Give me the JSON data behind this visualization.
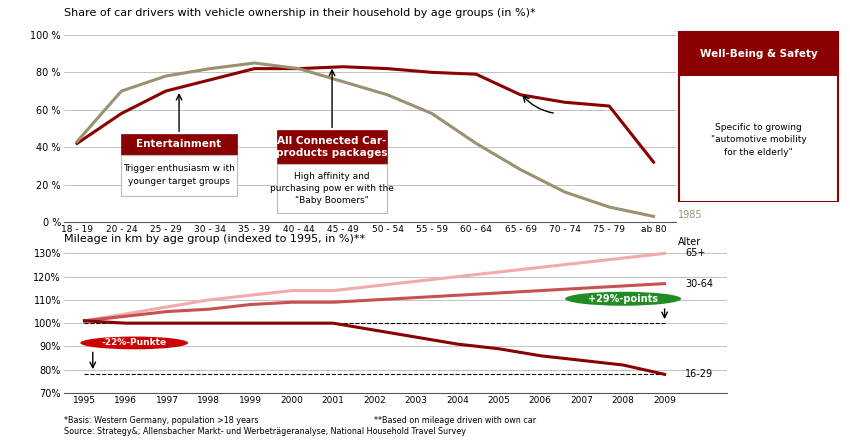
{
  "top_title": "Share of car drivers with vehicle ownership in their household by age groups (in %)*",
  "bottom_title": "Mileage in km by age group (indexed to 1995, in %)**",
  "age_labels": [
    "18 - 19",
    "20 - 24",
    "25 - 29",
    "30 - 34",
    "35 - 39",
    "40 - 44",
    "45 - 49",
    "50 - 54",
    "55 - 59",
    "60 - 64",
    "65 - 69",
    "70 - 74",
    "75 - 79",
    "ab 80"
  ],
  "line_2012": [
    42,
    58,
    70,
    76,
    82,
    82,
    83,
    82,
    80,
    79,
    68,
    64,
    62,
    32
  ],
  "line_1985": [
    43,
    70,
    78,
    82,
    85,
    82,
    75,
    68,
    58,
    42,
    28,
    16,
    8,
    3
  ],
  "top_color_2012": "#8B0000",
  "top_color_1985": "#9B9070",
  "years": [
    1995,
    1996,
    1997,
    1998,
    1999,
    2000,
    2001,
    2002,
    2003,
    2004,
    2005,
    2006,
    2007,
    2008,
    2009
  ],
  "mileage_65plus": [
    101,
    104,
    107,
    110,
    112,
    114,
    114,
    116,
    118,
    120,
    122,
    124,
    126,
    128,
    130
  ],
  "mileage_30_64": [
    101,
    103,
    105,
    106,
    108,
    109,
    109,
    110,
    111,
    112,
    113,
    114,
    115,
    116,
    117
  ],
  "mileage_16_29": [
    101,
    100,
    100,
    100,
    100,
    100,
    100,
    97,
    94,
    91,
    89,
    86,
    84,
    82,
    78
  ],
  "color_65plus": "#F4AAAA",
  "color_30_64": "#C85050",
  "color_16_29": "#8B0000",
  "footnote1": "*Basis: Western Germany, population >18 years",
  "footnote2": "**Based on mileage driven with own car",
  "footnote3": "Source: Strategy&; Allensbacher Markt- und Werbeträgeranalyse, National Household Travel Survey"
}
